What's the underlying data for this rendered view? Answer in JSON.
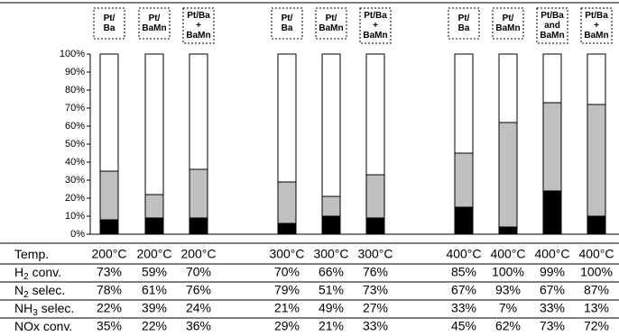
{
  "chart_data": {
    "type": "bar",
    "stacked": true,
    "categories": [
      [
        "Pt/",
        "Ba"
      ],
      [
        "Pt/",
        "BaMn"
      ],
      [
        "Pt/Ba",
        "+",
        "BaMn"
      ],
      [
        "Pt/",
        "Ba"
      ],
      [
        "Pt/",
        "BaMn"
      ],
      [
        "Pt/Ba",
        "+",
        "BaMn"
      ],
      [
        "Pt/",
        "Ba"
      ],
      [
        "Pt/",
        "BaMn"
      ],
      [
        "Pt/Ba",
        "and",
        "BaMn"
      ],
      [
        "Pt/Ba",
        "+",
        "BaMn"
      ]
    ],
    "series": [
      {
        "color": "#000000",
        "values": [
          8,
          9,
          9,
          6,
          10,
          9,
          15,
          4,
          24,
          10
        ]
      },
      {
        "color": "#c0c0c0",
        "values": [
          27,
          13,
          27,
          23,
          11,
          24,
          30,
          58,
          49,
          62
        ]
      },
      {
        "color": "#ffffff",
        "values": [
          65,
          78,
          64,
          71,
          79,
          67,
          55,
          38,
          27,
          28
        ]
      }
    ],
    "ylim": [
      0,
      100
    ],
    "yticks": [
      {
        "value": 0,
        "label": "0%"
      },
      {
        "value": 10,
        "label": "10%"
      },
      {
        "value": 20,
        "label": "20%"
      },
      {
        "value": 30,
        "label": "30%"
      },
      {
        "value": 40,
        "label": "40%"
      },
      {
        "value": 50,
        "label": "50%"
      },
      {
        "value": 60,
        "label": "60%"
      },
      {
        "value": 70,
        "label": "70%"
      },
      {
        "value": 80,
        "label": "80%"
      },
      {
        "value": 90,
        "label": "90%"
      },
      {
        "value": 100,
        "label": "100%"
      }
    ]
  },
  "table": {
    "rows": [
      {
        "label": [
          "Temp."
        ],
        "cells": [
          "200°C",
          "200°C",
          "200°C",
          "300°C",
          "300°C",
          "300°C",
          "400°C",
          "400°C",
          "400°C",
          "400°C"
        ]
      },
      {
        "label": [
          "H",
          "2",
          " conv."
        ],
        "cells": [
          "73%",
          "59%",
          "70%",
          "70%",
          "66%",
          "76%",
          "85%",
          "100%",
          "99%",
          "100%"
        ]
      },
      {
        "label": [
          "N",
          "2",
          " selec."
        ],
        "cells": [
          "78%",
          "61%",
          "76%",
          "79%",
          "51%",
          "73%",
          "67%",
          "93%",
          "67%",
          "87%"
        ]
      },
      {
        "label": [
          "NH",
          "3",
          " selec."
        ],
        "cells": [
          "22%",
          "39%",
          "24%",
          "21%",
          "49%",
          "27%",
          "33%",
          "7%",
          "33%",
          "13%"
        ]
      },
      {
        "label": [
          "NOx conv."
        ],
        "cells": [
          "35%",
          "22%",
          "36%",
          "29%",
          "21%",
          "33%",
          "45%",
          "62%",
          "73%",
          "72%"
        ]
      }
    ]
  }
}
